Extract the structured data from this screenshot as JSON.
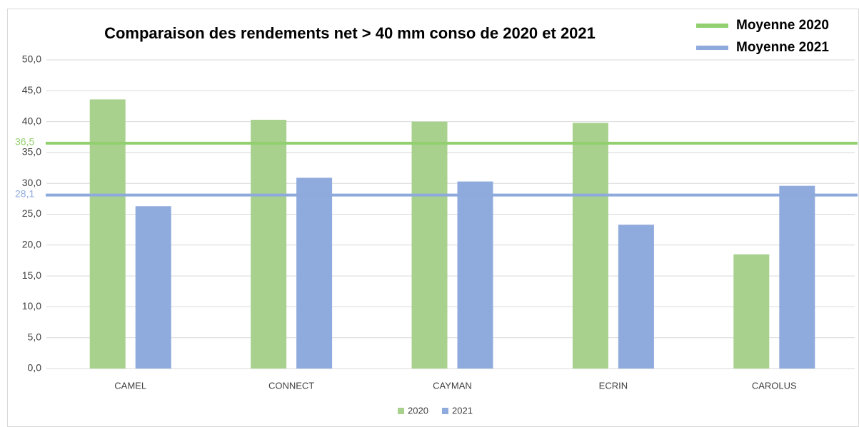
{
  "chart_data": {
    "type": "bar",
    "title": "Comparaison des rendements net > 40 mm conso de 2020 et 2021",
    "categories": [
      "CAMEL",
      "CONNECT",
      "CAYMAN",
      "ECRIN",
      "CAROLUS"
    ],
    "series": [
      {
        "name": "2020",
        "color": "#a9d18e",
        "values": [
          43.6,
          40.3,
          40.0,
          39.8,
          18.5
        ]
      },
      {
        "name": "2021",
        "color": "#8faadc",
        "values": [
          26.3,
          30.9,
          30.3,
          23.3,
          29.6
        ]
      }
    ],
    "reference_lines": [
      {
        "name": "Moyenne 2020",
        "color": "#92d06f",
        "value": 36.5,
        "value_label": "36,5"
      },
      {
        "name": "Moyenne 2021",
        "color": "#8eaadc",
        "value": 28.1,
        "value_label": "28,1"
      }
    ],
    "ylim": [
      0,
      50
    ],
    "yticks": [
      {
        "value": 0,
        "label": "0,0"
      },
      {
        "value": 5,
        "label": "5,0"
      },
      {
        "value": 10,
        "label": "10,0"
      },
      {
        "value": 15,
        "label": "15,0"
      },
      {
        "value": 20,
        "label": "20,0"
      },
      {
        "value": 25,
        "label": "25,0"
      },
      {
        "value": 30,
        "label": "30,0"
      },
      {
        "value": 35,
        "label": "35,0"
      },
      {
        "value": 40,
        "label": "40,0"
      },
      {
        "value": 45,
        "label": "45,0"
      },
      {
        "value": 50,
        "label": "50,0"
      }
    ],
    "grid": true
  }
}
